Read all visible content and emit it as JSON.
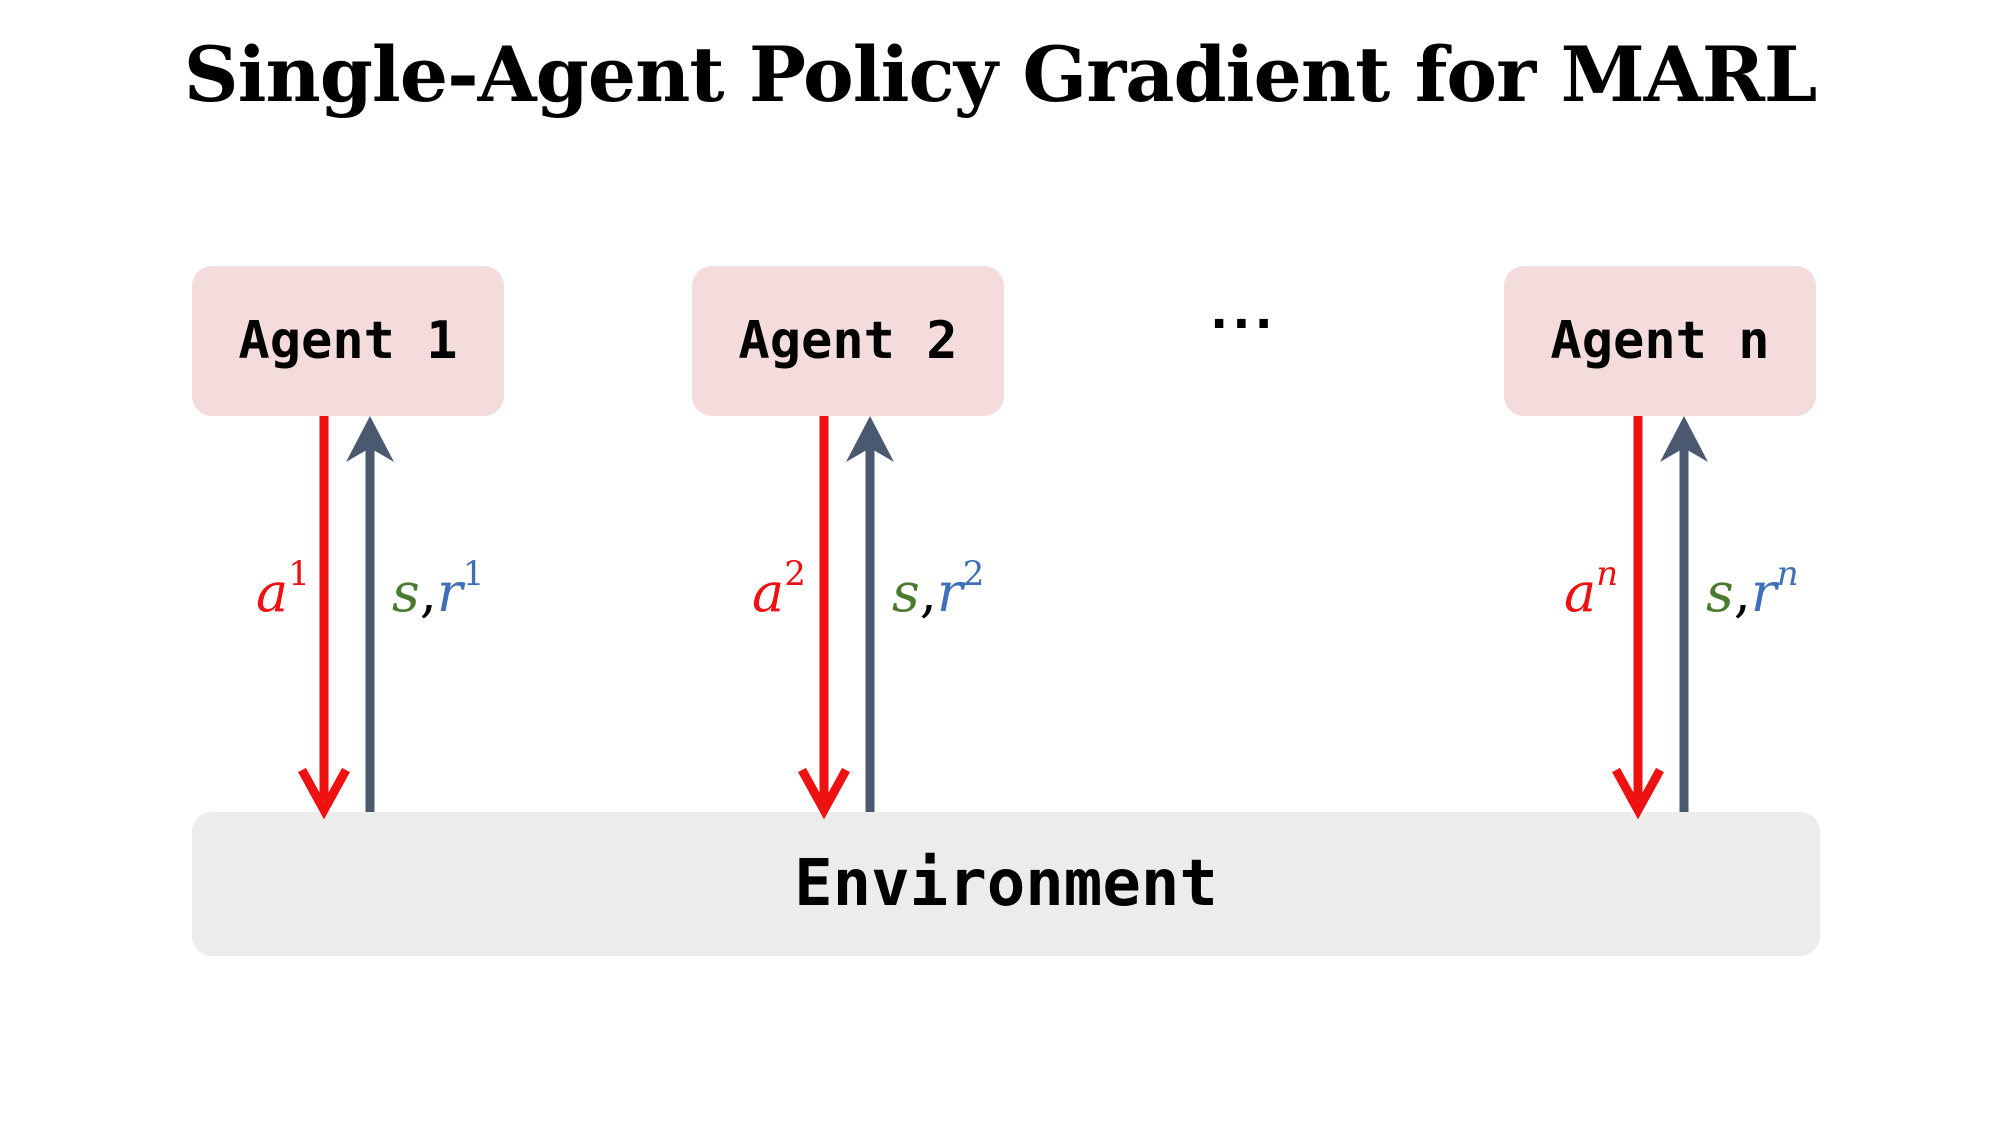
{
  "title": "Single-Agent Policy Gradient for MARL",
  "agents": [
    {
      "label": "Agent 1",
      "action_var": "a",
      "action_sup": "1",
      "state_var": "s",
      "sep": ",",
      "reward_var": "r",
      "reward_sup": "1"
    },
    {
      "label": "Agent 2",
      "action_var": "a",
      "action_sup": "2",
      "state_var": "s",
      "sep": ",",
      "reward_var": "r",
      "reward_sup": "2"
    },
    {
      "label": "Agent n",
      "action_var": "a",
      "action_sup": "n",
      "state_var": "s",
      "sep": ",",
      "reward_var": "r",
      "reward_sup": "n"
    }
  ],
  "ellipsis": "···",
  "environment": {
    "label": "Environment"
  },
  "colors": {
    "agent_fill": "#f4dcdd",
    "environment_fill": "#ececec",
    "action_arrow": "#ee1111",
    "observation_arrow": "#4a5870",
    "state_text": "#4a7a2e",
    "reward_text": "#3f6fb8"
  }
}
